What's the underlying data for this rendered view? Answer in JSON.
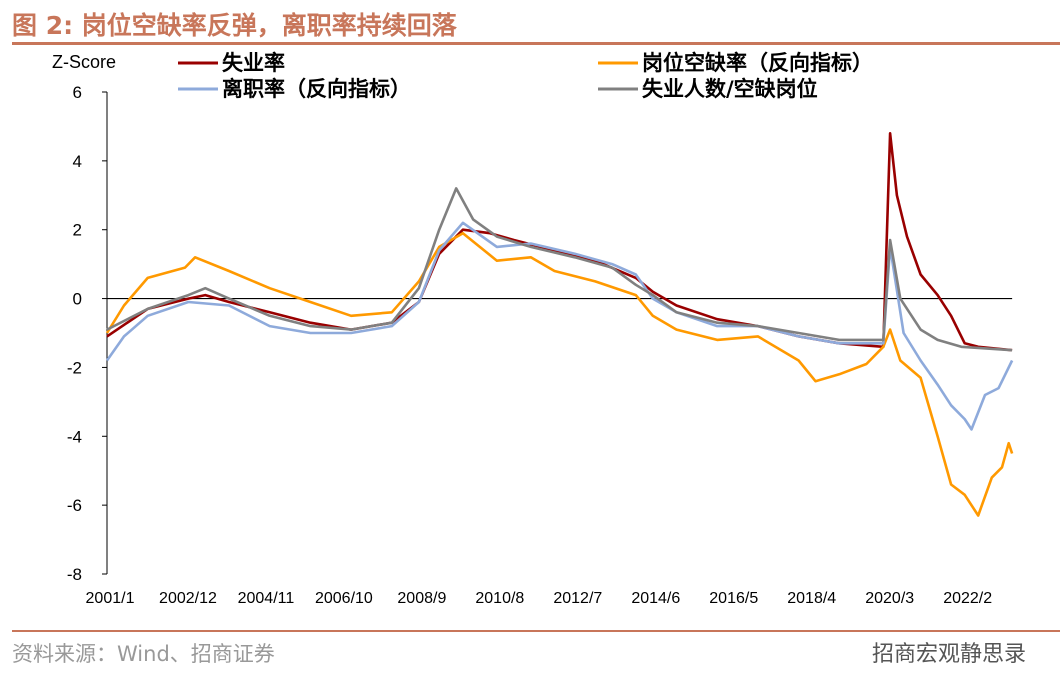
{
  "title": "图 2: 岗位空缺率反弹，离职率持续回落",
  "source": "资料来源：Wind、招商证券",
  "watermark": "招商宏观静思录",
  "chart_data": {
    "type": "line",
    "ylabel": "Z-Score",
    "ylim": [
      -8,
      6
    ],
    "yticks": [
      -8,
      -6,
      -4,
      -2,
      0,
      2,
      4,
      6
    ],
    "xlim": [
      "2001-01",
      "2023-04"
    ],
    "xticks": [
      "2001/1",
      "2002/12",
      "2004/11",
      "2006/10",
      "2008/9",
      "2010/8",
      "2012/7",
      "2014/6",
      "2016/5",
      "2018/4",
      "2020/3",
      "2022/2"
    ],
    "grid": false,
    "legend": "top",
    "series": [
      {
        "name": "失业率",
        "color": "#990000",
        "points": [
          [
            "2001-01",
            -1.1
          ],
          [
            "2002-01",
            -0.3
          ],
          [
            "2003-01",
            0.0
          ],
          [
            "2003-06",
            0.1
          ],
          [
            "2004-01",
            -0.1
          ],
          [
            "2005-01",
            -0.4
          ],
          [
            "2006-01",
            -0.7
          ],
          [
            "2007-01",
            -0.9
          ],
          [
            "2008-01",
            -0.7
          ],
          [
            "2008-09",
            -0.1
          ],
          [
            "2009-03",
            1.3
          ],
          [
            "2009-10",
            2.0
          ],
          [
            "2010-06",
            1.9
          ],
          [
            "2011-01",
            1.7
          ],
          [
            "2012-01",
            1.4
          ],
          [
            "2013-01",
            1.1
          ],
          [
            "2014-01",
            0.6
          ],
          [
            "2014-06",
            0.2
          ],
          [
            "2015-01",
            -0.2
          ],
          [
            "2016-01",
            -0.6
          ],
          [
            "2017-01",
            -0.8
          ],
          [
            "2018-01",
            -1.1
          ],
          [
            "2019-01",
            -1.3
          ],
          [
            "2020-02",
            -1.4
          ],
          [
            "2020-04",
            4.8
          ],
          [
            "2020-06",
            3.0
          ],
          [
            "2020-09",
            1.8
          ],
          [
            "2021-01",
            0.7
          ],
          [
            "2021-06",
            0.1
          ],
          [
            "2021-10",
            -0.5
          ],
          [
            "2022-02",
            -1.3
          ],
          [
            "2022-06",
            -1.4
          ],
          [
            "2023-04",
            -1.5
          ]
        ]
      },
      {
        "name": "岗位空缺率（反向指标）",
        "color": "#ff9900",
        "points": [
          [
            "2001-01",
            -1.0
          ],
          [
            "2001-06",
            -0.2
          ],
          [
            "2002-01",
            0.6
          ],
          [
            "2002-12",
            0.9
          ],
          [
            "2003-03",
            1.2
          ],
          [
            "2004-01",
            0.8
          ],
          [
            "2005-01",
            0.3
          ],
          [
            "2006-01",
            -0.1
          ],
          [
            "2007-01",
            -0.5
          ],
          [
            "2008-01",
            -0.4
          ],
          [
            "2008-09",
            0.5
          ],
          [
            "2009-03",
            1.5
          ],
          [
            "2009-10",
            1.9
          ],
          [
            "2010-08",
            1.1
          ],
          [
            "2011-06",
            1.2
          ],
          [
            "2012-01",
            0.8
          ],
          [
            "2013-01",
            0.5
          ],
          [
            "2014-01",
            0.1
          ],
          [
            "2014-06",
            -0.5
          ],
          [
            "2015-01",
            -0.9
          ],
          [
            "2016-01",
            -1.2
          ],
          [
            "2017-01",
            -1.1
          ],
          [
            "2018-01",
            -1.8
          ],
          [
            "2018-06",
            -2.4
          ],
          [
            "2019-01",
            -2.2
          ],
          [
            "2019-09",
            -1.9
          ],
          [
            "2020-02",
            -1.4
          ],
          [
            "2020-04",
            -0.9
          ],
          [
            "2020-07",
            -1.8
          ],
          [
            "2021-01",
            -2.3
          ],
          [
            "2021-06",
            -4.0
          ],
          [
            "2021-10",
            -5.4
          ],
          [
            "2022-02",
            -5.7
          ],
          [
            "2022-06",
            -6.3
          ],
          [
            "2022-10",
            -5.2
          ],
          [
            "2023-01",
            -4.9
          ],
          [
            "2023-03",
            -4.2
          ],
          [
            "2023-04",
            -4.5
          ]
        ]
      },
      {
        "name": "离职率（反向指标）",
        "color": "#8eaadb",
        "points": [
          [
            "2001-01",
            -1.8
          ],
          [
            "2001-06",
            -1.1
          ],
          [
            "2002-01",
            -0.5
          ],
          [
            "2003-01",
            -0.1
          ],
          [
            "2004-01",
            -0.2
          ],
          [
            "2005-01",
            -0.8
          ],
          [
            "2006-01",
            -1.0
          ],
          [
            "2007-01",
            -1.0
          ],
          [
            "2008-01",
            -0.8
          ],
          [
            "2008-09",
            -0.1
          ],
          [
            "2009-03",
            1.4
          ],
          [
            "2009-10",
            2.2
          ],
          [
            "2010-08",
            1.5
          ],
          [
            "2011-06",
            1.6
          ],
          [
            "2012-07",
            1.3
          ],
          [
            "2013-06",
            1.0
          ],
          [
            "2014-01",
            0.7
          ],
          [
            "2014-06",
            0.0
          ],
          [
            "2015-01",
            -0.4
          ],
          [
            "2016-01",
            -0.8
          ],
          [
            "2017-01",
            -0.8
          ],
          [
            "2018-01",
            -1.1
          ],
          [
            "2019-01",
            -1.3
          ],
          [
            "2020-02",
            -1.3
          ],
          [
            "2020-04",
            1.5
          ],
          [
            "2020-08",
            -1.0
          ],
          [
            "2021-01",
            -1.8
          ],
          [
            "2021-06",
            -2.5
          ],
          [
            "2021-10",
            -3.1
          ],
          [
            "2022-02",
            -3.5
          ],
          [
            "2022-04",
            -3.8
          ],
          [
            "2022-08",
            -2.8
          ],
          [
            "2022-12",
            -2.6
          ],
          [
            "2023-04",
            -1.8
          ]
        ]
      },
      {
        "name": "失业人数/空缺岗位",
        "color": "#808080",
        "points": [
          [
            "2001-01",
            -0.9
          ],
          [
            "2002-01",
            -0.3
          ],
          [
            "2003-01",
            0.1
          ],
          [
            "2003-06",
            0.3
          ],
          [
            "2004-01",
            0.0
          ],
          [
            "2005-01",
            -0.5
          ],
          [
            "2006-01",
            -0.8
          ],
          [
            "2007-01",
            -0.9
          ],
          [
            "2008-01",
            -0.7
          ],
          [
            "2008-09",
            0.3
          ],
          [
            "2009-03",
            2.0
          ],
          [
            "2009-08",
            3.2
          ],
          [
            "2010-01",
            2.3
          ],
          [
            "2010-08",
            1.8
          ],
          [
            "2011-06",
            1.5
          ],
          [
            "2012-07",
            1.2
          ],
          [
            "2013-06",
            0.9
          ],
          [
            "2014-01",
            0.4
          ],
          [
            "2014-06",
            0.1
          ],
          [
            "2015-01",
            -0.4
          ],
          [
            "2016-01",
            -0.7
          ],
          [
            "2017-01",
            -0.8
          ],
          [
            "2018-01",
            -1.0
          ],
          [
            "2019-01",
            -1.2
          ],
          [
            "2020-02",
            -1.2
          ],
          [
            "2020-04",
            1.7
          ],
          [
            "2020-07",
            0.0
          ],
          [
            "2021-01",
            -0.9
          ],
          [
            "2021-06",
            -1.2
          ],
          [
            "2022-01",
            -1.4
          ],
          [
            "2023-04",
            -1.5
          ]
        ]
      }
    ]
  }
}
